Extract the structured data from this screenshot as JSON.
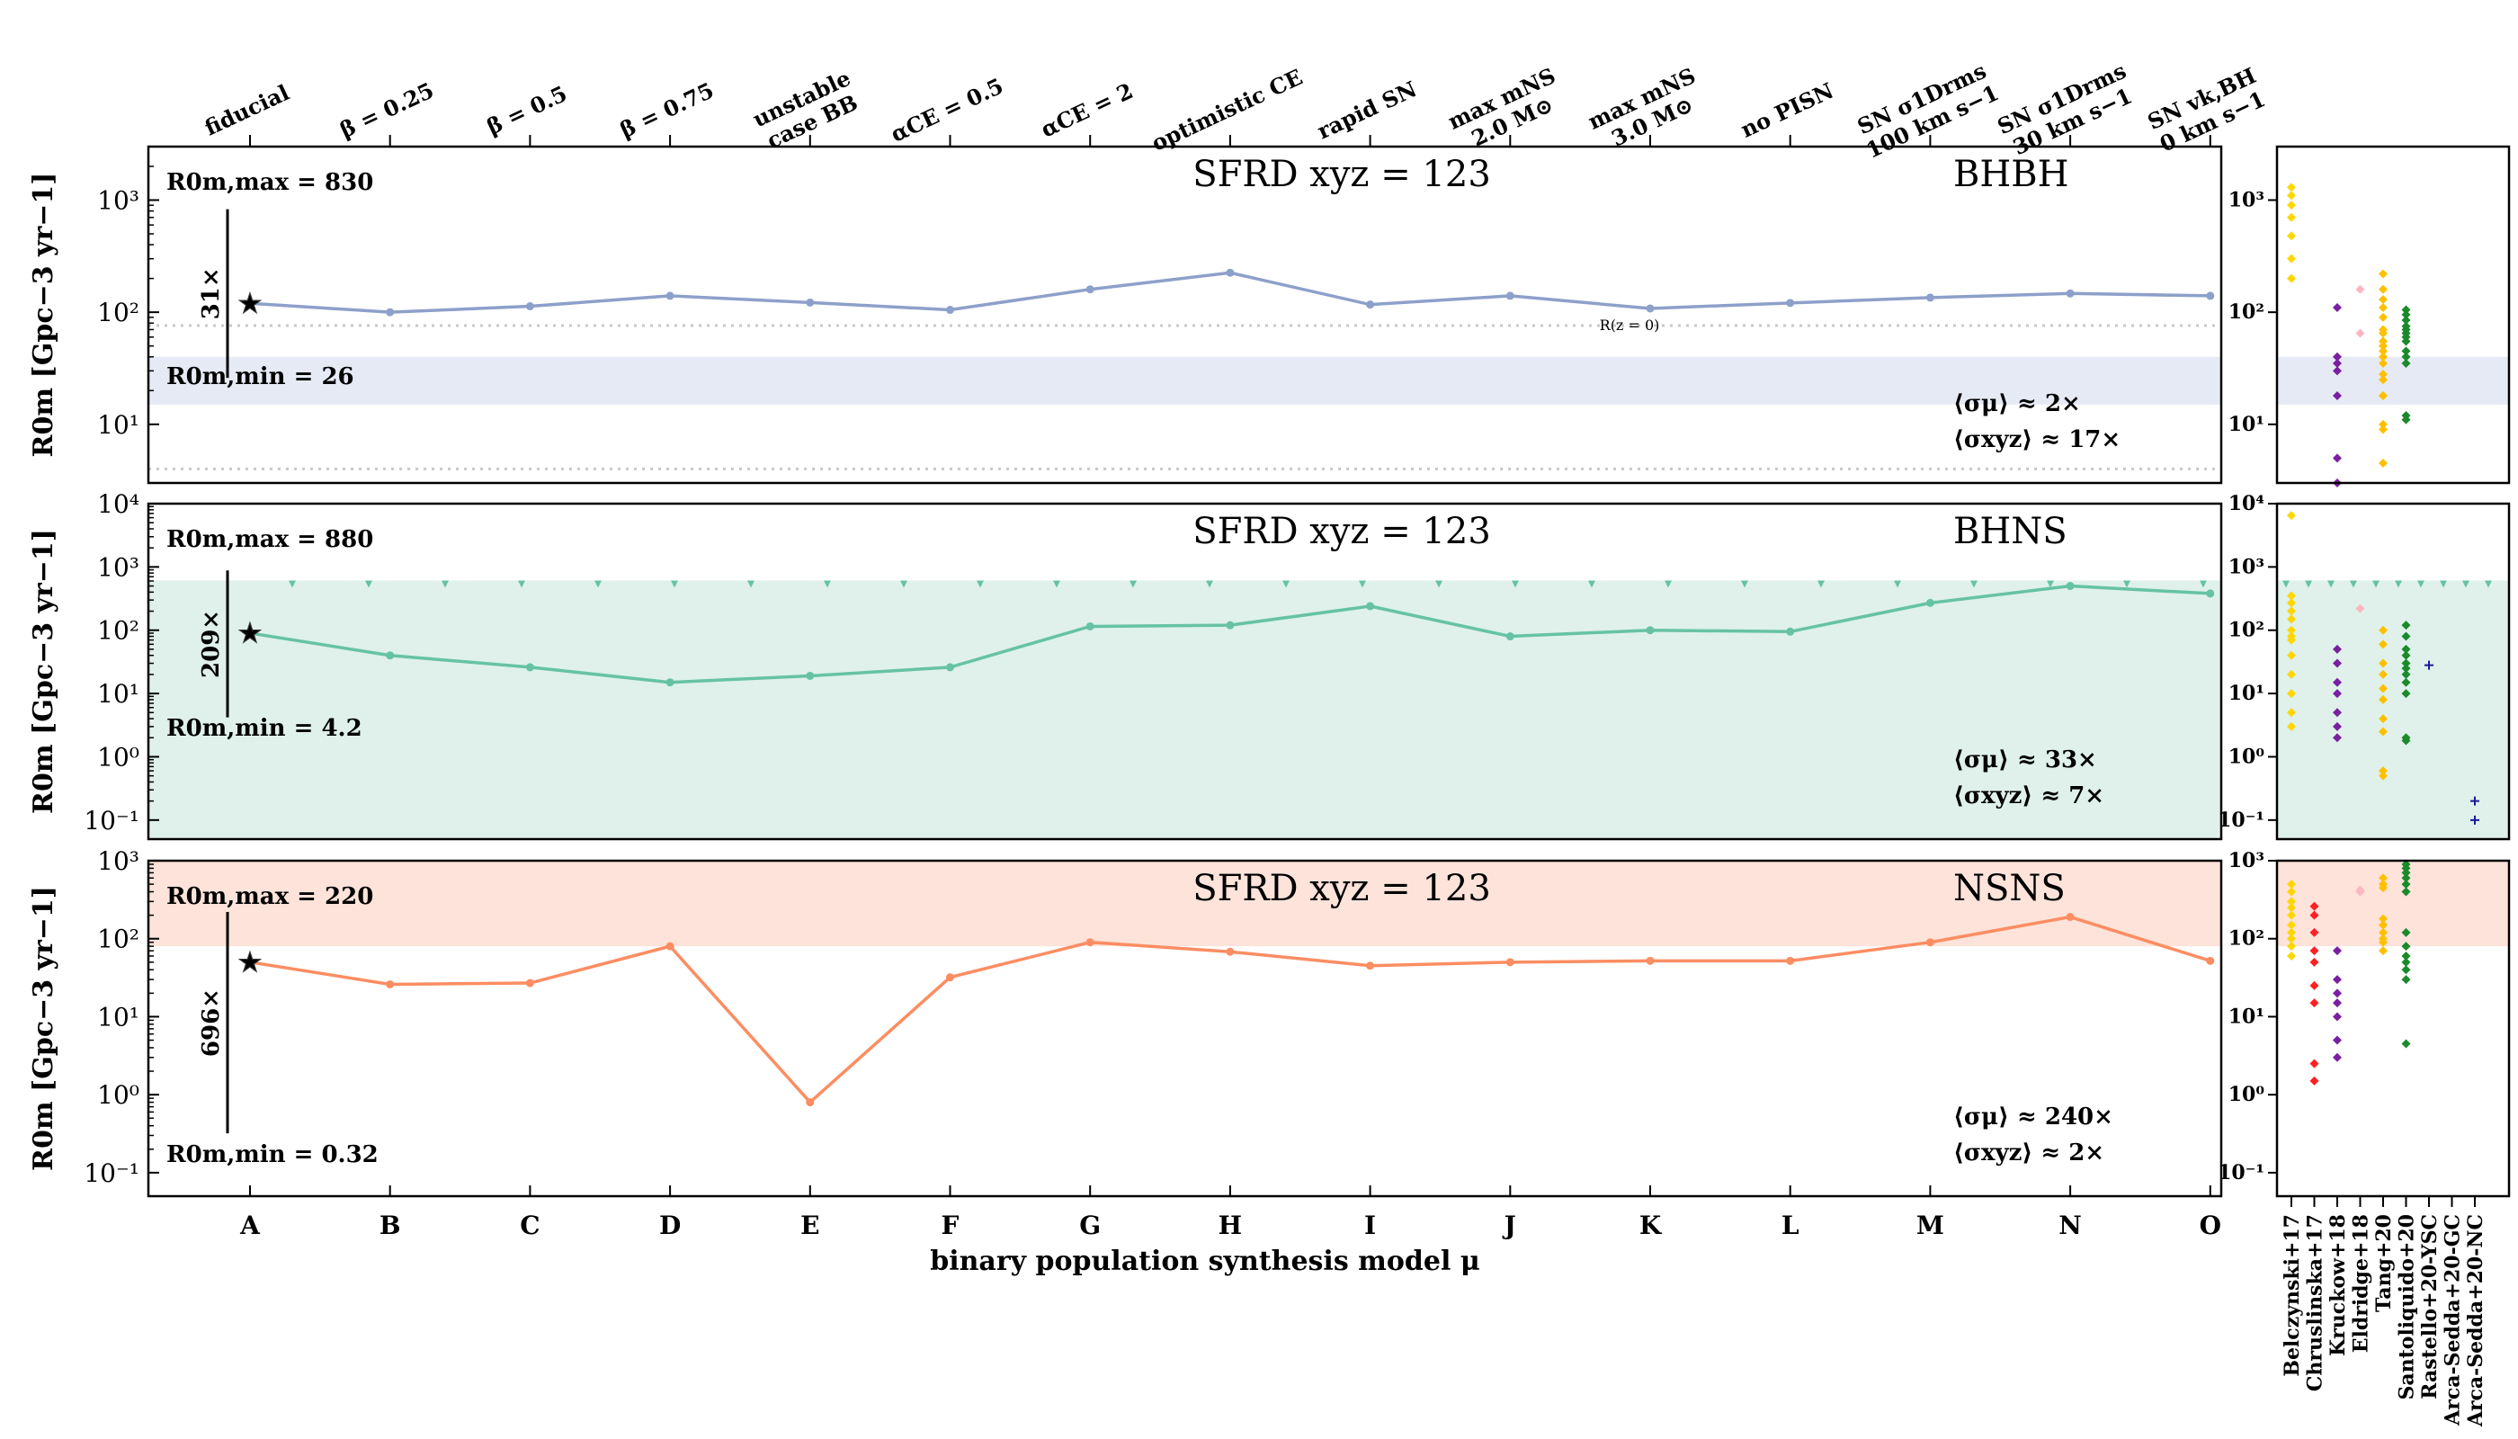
{
  "figure": {
    "xlabel": "binary population synthesis model μ",
    "model_letters": [
      "A",
      "B",
      "C",
      "D",
      "E",
      "F",
      "G",
      "H",
      "I",
      "J",
      "K",
      "L",
      "M",
      "N",
      "O"
    ],
    "model_names": [
      [
        "fiducial"
      ],
      [
        "β = 0.25"
      ],
      [
        "β = 0.5"
      ],
      [
        "β = 0.75"
      ],
      [
        "unstable",
        "case BB"
      ],
      [
        "αCE = 0.5"
      ],
      [
        "αCE = 2"
      ],
      [
        "optimistic CE"
      ],
      [
        "rapid SN"
      ],
      [
        "max mNS",
        "2.0 M⊙"
      ],
      [
        "max mNS",
        "3.0 M⊙"
      ],
      [
        "no PISN"
      ],
      [
        "SN σ1Drms",
        "100 km s−1"
      ],
      [
        "SN σ1Drms",
        "30 km s−1"
      ],
      [
        "SN vk,BH",
        "0 km s−1"
      ]
    ],
    "ylabel": "R0m [Gpc−3 yr−1]",
    "references": [
      "Belczynski+17",
      "Chruslinska+17",
      "Kruckow+18",
      "Eldridge+18",
      "Tang+20",
      "Santoliquido+20",
      "Rastello+20-YSC",
      "Arca-Sedda+20-GC",
      "Arca-Sedda+20-NC"
    ],
    "ref_colors": [
      "#ffd700",
      "#ff2020",
      "#7a1fa2",
      "#ffb6c1",
      "#ffc000",
      "#1a8a2a",
      "#1a1a9a",
      "#1a1a9a",
      "#1a1a9a"
    ],
    "star_label": "★"
  },
  "chart_data": [
    {
      "type": "line",
      "panel": "BHBH",
      "title": "SFRD xyz = 123",
      "color": "#8da0cb",
      "band_color": "#e6eaf5",
      "ylim": [
        3,
        3000
      ],
      "yticks": [
        {
          "v": 10,
          "label": "10¹"
        },
        {
          "v": 100,
          "label": "10²"
        },
        {
          "v": 1000,
          "label": "10³"
        }
      ],
      "rticks": [
        {
          "v": 10,
          "label": "10¹"
        },
        {
          "v": 100,
          "label": "10²"
        },
        {
          "v": 1000,
          "label": "10³"
        }
      ],
      "values": [
        120,
        100,
        113,
        140,
        122,
        105,
        160,
        225,
        117,
        140,
        108,
        121,
        135,
        147,
        140
      ],
      "band": [
        15,
        40
      ],
      "dotted_lines": [
        76,
        4
      ],
      "dotted_label": "R(z = 0)",
      "max_label": "R0m,max = 830",
      "min_label": "R0m,min = 26",
      "max_value": 830,
      "min_value": 26,
      "span_label": "31×",
      "sigma_mu": "⟨σμ⟩ ≈ 2×",
      "sigma_xyz": "⟨σxyz⟩ ≈ 17×",
      "triangles_level": null,
      "refs": [
        {
          "ref": 0,
          "values": [
            1300,
            1100,
            900,
            700,
            480,
            300,
            200
          ]
        },
        {
          "ref": 4,
          "values": [
            130,
            90,
            65,
            55,
            45,
            40,
            35,
            28,
            18,
            9,
            4.5
          ]
        },
        {
          "ref": 2,
          "values": [
            110,
            40,
            35,
            30,
            18,
            5,
            3
          ]
        },
        {
          "ref": 3,
          "values": [
            160,
            65
          ]
        },
        {
          "ref": 4,
          "values": [
            220,
            160,
            110,
            70,
            50,
            40,
            25,
            18,
            10
          ]
        },
        {
          "ref": 5,
          "values": [
            105,
            95,
            85,
            75,
            70,
            65,
            60,
            55,
            45,
            40,
            35,
            12,
            11
          ]
        }
      ]
    },
    {
      "type": "line",
      "panel": "BHNS",
      "title": "SFRD xyz = 123",
      "color": "#66c2a5",
      "band_color": "#dff1ea",
      "ylim": [
        0.05,
        10000
      ],
      "yticks": [
        {
          "v": 0.1,
          "label": "10⁻¹"
        },
        {
          "v": 1,
          "label": "10⁰"
        },
        {
          "v": 10,
          "label": "10¹"
        },
        {
          "v": 100,
          "label": "10²"
        },
        {
          "v": 1000,
          "label": "10³"
        },
        {
          "v": 10000,
          "label": "10⁴"
        }
      ],
      "rticks": [
        {
          "v": 0.1,
          "label": "10⁻¹"
        },
        {
          "v": 1,
          "label": "10⁰"
        },
        {
          "v": 10,
          "label": "10¹"
        },
        {
          "v": 100,
          "label": "10²"
        },
        {
          "v": 1000,
          "label": "10³"
        },
        {
          "v": 10000,
          "label": "10⁴"
        }
      ],
      "values": [
        90,
        40,
        26,
        15,
        19,
        26,
        115,
        120,
        240,
        80,
        100,
        95,
        270,
        500,
        380
      ],
      "band": [
        0.05,
        610
      ],
      "dotted_lines": [],
      "dotted_label": "",
      "max_label": "R0m,max = 880",
      "min_label": "R0m,min = 4.2",
      "max_value": 880,
      "min_value": 4.2,
      "span_label": "209×",
      "sigma_mu": "⟨σμ⟩ ≈ 33×",
      "sigma_xyz": "⟨σxyz⟩ ≈ 7×",
      "triangles_level": 610,
      "refs": [
        {
          "ref": 0,
          "values": [
            270,
            150,
            80,
            40,
            20,
            10,
            5,
            3
          ]
        },
        {
          "ref": 4,
          "values": [
            100,
            60,
            30,
            20,
            12,
            8,
            4,
            2.5,
            0.6,
            0.5
          ]
        },
        {
          "ref": 2,
          "values": [
            50,
            30,
            15,
            10,
            5,
            3,
            2
          ]
        },
        {
          "ref": 3,
          "values": [
            220
          ]
        },
        {
          "ref": 0,
          "values": [
            6500,
            350,
            200,
            100,
            70
          ]
        },
        {
          "ref": 5,
          "values": [
            120,
            80,
            50,
            40,
            30,
            25,
            20,
            15,
            10,
            2,
            1.8
          ]
        },
        {
          "ref": 6,
          "values": [
            28
          ]
        },
        {
          "ref": 8,
          "values": [
            0.2,
            0.1
          ]
        }
      ]
    },
    {
      "type": "line",
      "panel": "NSNS",
      "title": "SFRD xyz = 123",
      "color": "#fc8d62",
      "band_color": "#fde3da",
      "ylim": [
        0.05,
        1000
      ],
      "yticks": [
        {
          "v": 0.1,
          "label": "10⁻¹"
        },
        {
          "v": 1,
          "label": "10⁰"
        },
        {
          "v": 10,
          "label": "10¹"
        },
        {
          "v": 100,
          "label": "10²"
        },
        {
          "v": 1000,
          "label": "10³"
        }
      ],
      "rticks": [
        {
          "v": 0.1,
          "label": "10⁻¹"
        },
        {
          "v": 1,
          "label": "10⁰"
        },
        {
          "v": 10,
          "label": "10¹"
        },
        {
          "v": 100,
          "label": "10²"
        },
        {
          "v": 1000,
          "label": "10³"
        }
      ],
      "values": [
        50,
        26,
        27,
        80,
        0.8,
        32,
        90,
        68,
        45,
        50,
        52,
        52,
        90,
        190,
        52
      ],
      "band": [
        80,
        1000
      ],
      "dotted_lines": [],
      "dotted_label": "",
      "max_label": "R0m,max = 220",
      "min_label": "R0m,min = 0.32",
      "max_value": 220,
      "min_value": 0.32,
      "span_label": "696×",
      "sigma_mu": "⟨σμ⟩ ≈ 240×",
      "sigma_xyz": "⟨σxyz⟩ ≈ 2×",
      "triangles_level": null,
      "refs": [
        {
          "ref": 0,
          "values": [
            500,
            400,
            300,
            250,
            200,
            150,
            120,
            100,
            80,
            60
          ]
        },
        {
          "ref": 4,
          "values": [
            180,
            150,
            120,
            100,
            90,
            70
          ]
        },
        {
          "ref": 1,
          "values": [
            260,
            200,
            120,
            70,
            50,
            25,
            15,
            2.5,
            1.5
          ]
        },
        {
          "ref": 2,
          "values": [
            70,
            30,
            20,
            15,
            10,
            5,
            3
          ]
        },
        {
          "ref": 3,
          "values": [
            420,
            400
          ]
        },
        {
          "ref": 4,
          "values": [
            600,
            500,
            450
          ]
        },
        {
          "ref": 5,
          "values": [
            900,
            800,
            700,
            600,
            500,
            400,
            120,
            80,
            60,
            50,
            40,
            30,
            4.5
          ]
        }
      ]
    }
  ]
}
